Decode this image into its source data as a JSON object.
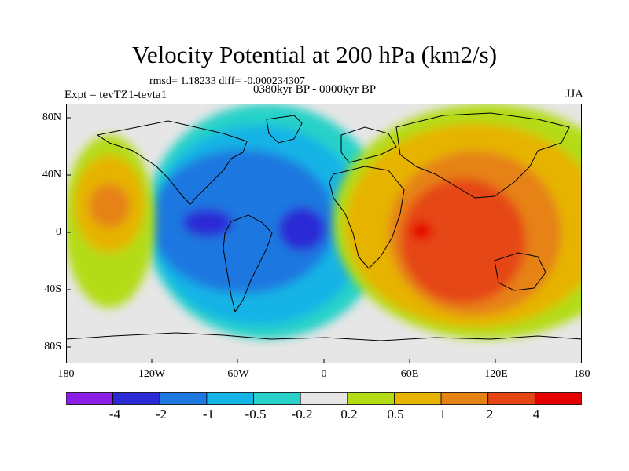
{
  "title": "Velocity Potential at 200 hPa (km2/s)",
  "stats": "rmsd= 1.18233 diff= -0.000234307",
  "period": "0380kyr BP - 0000kyr BP",
  "experiment": "Expt = tevTZ1-tevta1",
  "season": "JJA",
  "lat_labels": [
    "80N",
    "40N",
    "0",
    "40S",
    "80S"
  ],
  "lon_labels": [
    "180",
    "120W",
    "60W",
    "0",
    "60E",
    "120E",
    "180"
  ],
  "colorbar": {
    "labels": [
      "-4",
      "-2",
      "-1",
      "-0.5",
      "-0.2",
      "0.2",
      "0.5",
      "1",
      "2",
      "4"
    ],
    "colors": [
      "#8a1ee6",
      "#2b2bd6",
      "#1e78e0",
      "#14b4e6",
      "#28d2c8",
      "#e6e6e6",
      "#b4dc14",
      "#e6b400",
      "#e68214",
      "#e64614",
      "#e60000"
    ]
  }
}
